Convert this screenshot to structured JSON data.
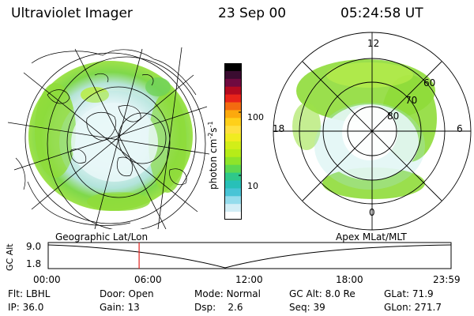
{
  "header": {
    "title": "Ultraviolet Imager",
    "date": "23 Sep 00",
    "time": "05:24:58 UT"
  },
  "colorbar": {
    "label": "photon cm",
    "exp1": "-2",
    "mid": "s",
    "exp2": "-1",
    "ticks": [
      "100",
      "10"
    ],
    "colors": [
      "#000000",
      "#3a0c30",
      "#700a40",
      "#b30a20",
      "#e8241a",
      "#f36b10",
      "#fca90d",
      "#ffd01a",
      "#ffe040",
      "#f0ec20",
      "#d2ee18",
      "#b6ec18",
      "#8ee42a",
      "#5cd850",
      "#2fc88a",
      "#28c0b8",
      "#48c4d6",
      "#94dcec",
      "#d2eef6",
      "#ffffff"
    ]
  },
  "polar": {
    "labels": [
      "12",
      "18",
      "6",
      "0",
      "60",
      "70",
      "80"
    ]
  },
  "timeline": {
    "left_title": "Geographic Lat/Lon",
    "right_title": "Apex MLat/MLT",
    "yaxis_label": "GC Alt",
    "ymax": "9.0",
    "ymin": "1.8",
    "xticks": [
      "00:00",
      "06:00",
      "12:00",
      "18:00",
      "23:59"
    ],
    "marker_hour": 5.416
  },
  "footer": {
    "flt_label": "Flt:",
    "flt_value": "LBHL",
    "door_label": "Door:",
    "door_value": "Open",
    "mode_label": "Mode:",
    "mode_value": "Normal",
    "gcalt_label": "GC Alt:",
    "gcalt_value": "8.0 Re",
    "glat_label": "GLat:",
    "glat_value": "71.9",
    "ip_label": "IP:",
    "ip_value": "36.0",
    "gain_label": "Gain:",
    "gain_value": "13",
    "dsp_label": "Dsp:",
    "dsp_value": "2.6",
    "seq_label": "Seq:",
    "seq_value": "39",
    "glon_label": "GLon:",
    "glon_value": "271.7"
  }
}
